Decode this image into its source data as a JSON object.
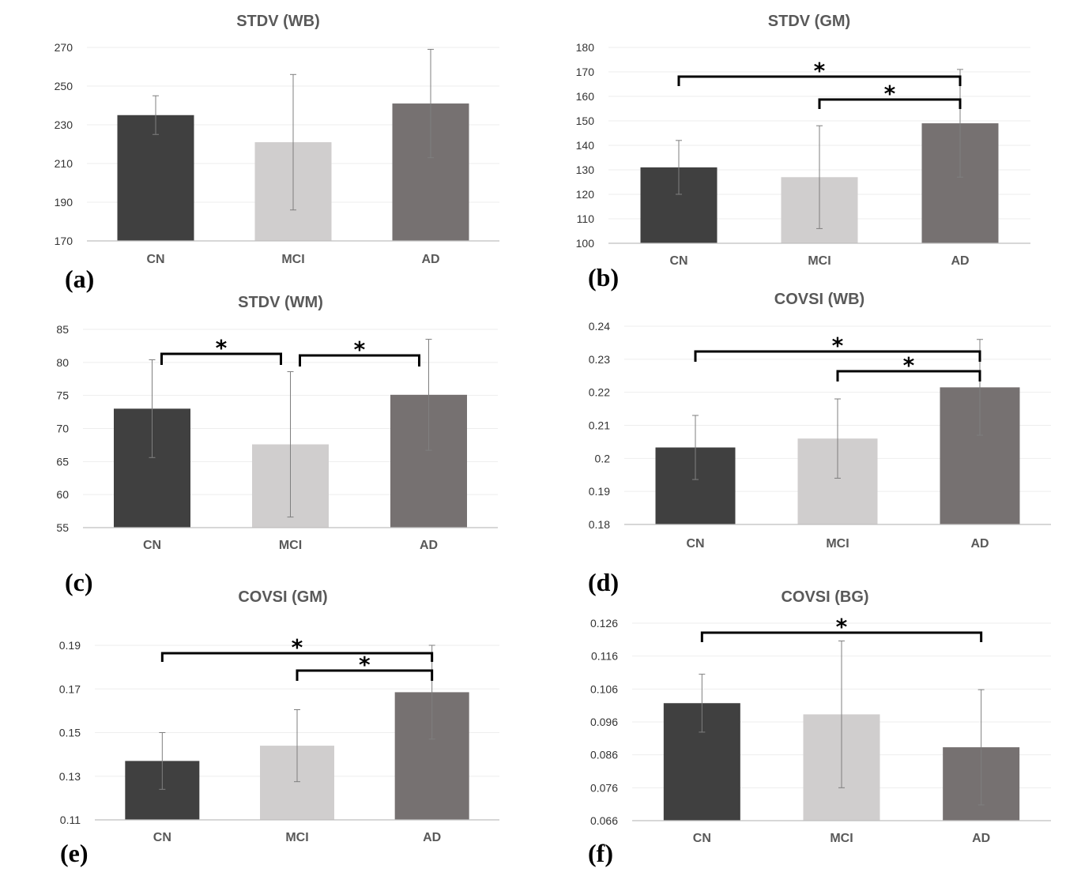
{
  "chart_data": [
    {
      "type": "bar",
      "panel_label": "(a)",
      "title": "STDV (WB)",
      "categories": [
        "CN",
        "MCI",
        "AD"
      ],
      "values": [
        235,
        221,
        241
      ],
      "errors": [
        10,
        35,
        28
      ],
      "ylim": [
        170,
        270
      ],
      "yticks": [
        "170",
        "190",
        "210",
        "230",
        "250",
        "270"
      ],
      "colors": [
        "#404040",
        "#d0cece",
        "#767171"
      ],
      "significance": []
    },
    {
      "type": "bar",
      "panel_label": "(b)",
      "title": "STDV (GM)",
      "categories": [
        "CN",
        "MCI",
        "AD"
      ],
      "values": [
        131,
        127,
        149
      ],
      "errors": [
        11,
        21,
        22
      ],
      "ylim": [
        100,
        180
      ],
      "yticks": [
        "100",
        "110",
        "120",
        "130",
        "140",
        "150",
        "160",
        "170",
        "180"
      ],
      "colors": [
        "#404040",
        "#d0cece",
        "#767171"
      ],
      "significance": [
        {
          "from": 0,
          "to": 2,
          "label": "*"
        },
        {
          "from": 1,
          "to": 2,
          "label": "*"
        }
      ]
    },
    {
      "type": "bar",
      "panel_label": "(c)",
      "title": "STDV (WM)",
      "categories": [
        "CN",
        "MCI",
        "AD"
      ],
      "values": [
        73,
        67.6,
        75.1
      ],
      "errors": [
        7.4,
        11,
        8.4
      ],
      "ylim": [
        55,
        85
      ],
      "yticks": [
        "55",
        "60",
        "65",
        "70",
        "75",
        "80",
        "85"
      ],
      "colors": [
        "#404040",
        "#d0cece",
        "#767171"
      ],
      "significance": [
        {
          "from": 0,
          "to": 1,
          "label": "*"
        },
        {
          "from": 1,
          "to": 2,
          "label": "*"
        }
      ]
    },
    {
      "type": "bar",
      "panel_label": "(d)",
      "title": "COVSI (WB)",
      "categories": [
        "CN",
        "MCI",
        "AD"
      ],
      "values": [
        0.2033,
        0.206,
        0.2215
      ],
      "errors": [
        0.0097,
        0.012,
        0.0145
      ],
      "ylim": [
        0.18,
        0.24
      ],
      "yticks": [
        "0.18",
        "0.19",
        "0.2",
        "0.21",
        "0.22",
        "0.23",
        "0.24"
      ],
      "colors": [
        "#404040",
        "#d0cece",
        "#767171"
      ],
      "significance": [
        {
          "from": 0,
          "to": 2,
          "label": "*"
        },
        {
          "from": 1,
          "to": 2,
          "label": "*"
        }
      ]
    },
    {
      "type": "bar",
      "panel_label": "(e)",
      "title": "COVSI (GM)",
      "categories": [
        "CN",
        "MCI",
        "AD"
      ],
      "values": [
        0.137,
        0.144,
        0.1685
      ],
      "errors": [
        0.013,
        0.0165,
        0.0215
      ],
      "ylim": [
        0.11,
        0.19
      ],
      "yticks": [
        "0.11",
        "0.13",
        "0.15",
        "0.17",
        "0.19"
      ],
      "colors": [
        "#404040",
        "#d0cece",
        "#767171"
      ],
      "significance": [
        {
          "from": 0,
          "to": 2,
          "label": "*"
        },
        {
          "from": 1,
          "to": 2,
          "label": "*"
        }
      ]
    },
    {
      "type": "bar",
      "panel_label": "(f)",
      "title": "COVSI (BG)",
      "categories": [
        "CN",
        "MCI",
        "AD"
      ],
      "values": [
        0.1017,
        0.0983,
        0.0883
      ],
      "errors": [
        0.0088,
        0.0223,
        0.0175
      ],
      "ylim": [
        0.066,
        0.126
      ],
      "yticks": [
        "0.066",
        "0.076",
        "0.086",
        "0.096",
        "0.106",
        "0.116",
        "0.126"
      ],
      "colors": [
        "#404040",
        "#d0cece",
        "#767171"
      ],
      "significance": [
        {
          "from": 0,
          "to": 2,
          "label": "*"
        }
      ]
    }
  ]
}
